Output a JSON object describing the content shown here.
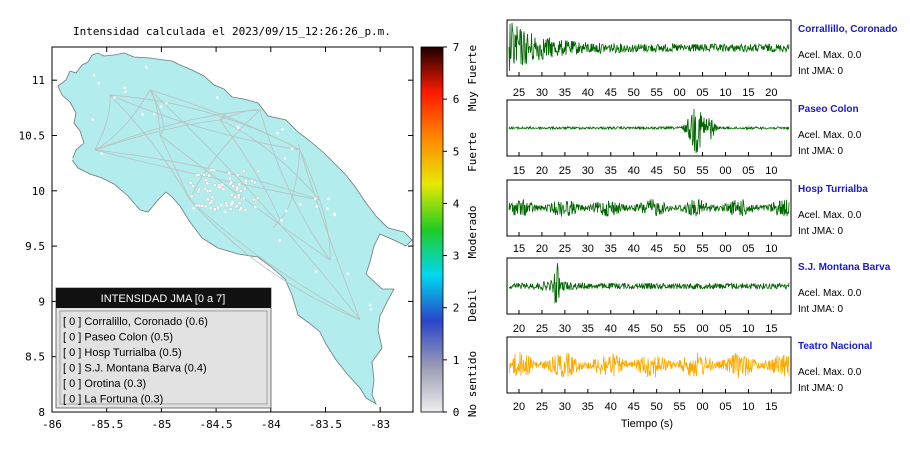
{
  "map": {
    "title": "Intensidad calculada el 2023/09/15_12:26:26_p.m.",
    "x_ticks": [
      -86,
      -85.5,
      -85,
      -84.5,
      -84,
      -83.5,
      -83
    ],
    "y_ticks": [
      8,
      8.5,
      9,
      9.5,
      10,
      10.5,
      11
    ],
    "xlim": [
      -86,
      -82.7
    ],
    "ylim": [
      8,
      11.3
    ],
    "colors": {
      "land": "#b3ecec",
      "coast": "#6a7b7b",
      "roads": "#b8c2c2",
      "towns": "#ffffff"
    }
  },
  "colorbar": {
    "ticks": [
      "0",
      "1",
      "2",
      "3",
      "4",
      "5",
      "6",
      "7"
    ],
    "labels": [
      "No sentido",
      "Debil",
      "Moderado",
      "Fuerte",
      "Muy Fuerte"
    ],
    "gradient": [
      "#eeeeee",
      "#9a9ab5",
      "#2a45c8",
      "#00d8f0",
      "#22cc22",
      "#e8e800",
      "#ff8800",
      "#ff1a00",
      "#1a0000"
    ]
  },
  "legend": {
    "title": "INTENSIDAD JMA [0 a 7]",
    "items": [
      "[ 0 ]  Corralillo, Coronado (0.6)",
      "[ 0 ]  Paseo Colon (0.5)",
      "[ 0 ]  Hosp Turrialba (0.5)",
      "[ 0 ]  S.J. Montana Barva (0.4)",
      "[ 0 ]  Orotina (0.3)",
      "[ 0 ]  La Fortuna (0.3)"
    ]
  },
  "chart_data": [
    {
      "type": "line",
      "title": "Intensidad calculada el 2023/09/15_12:26:26_p.m.",
      "xlim": [
        -86,
        -82.7
      ],
      "ylim": [
        8,
        11.3
      ]
    },
    {
      "type": "line",
      "name": "Corrallillo, Coronado",
      "x_ticks": [
        "25",
        "30",
        "35",
        "40",
        "45",
        "50",
        "55",
        "00",
        "05",
        "10",
        "15",
        "20"
      ],
      "color": "#006600",
      "amplitude_profile": "early-burst"
    },
    {
      "type": "line",
      "name": "Paseo Colon",
      "x_ticks": [
        "15",
        "20",
        "25",
        "30",
        "35",
        "40",
        "45",
        "50",
        "55",
        "00",
        "05",
        "10"
      ],
      "color": "#006600",
      "amplitude_profile": "mid-burst"
    },
    {
      "type": "line",
      "name": "Hosp Turrialba",
      "x_ticks": [
        "15",
        "20",
        "25",
        "30",
        "35",
        "40",
        "45",
        "50",
        "55",
        "00",
        "05",
        "10"
      ],
      "color": "#006600",
      "amplitude_profile": "noise"
    },
    {
      "type": "line",
      "name": "S.J. Montana Barva",
      "x_ticks": [
        "20",
        "25",
        "30",
        "35",
        "40",
        "45",
        "50",
        "55",
        "00",
        "05",
        "10",
        "15"
      ],
      "color": "#006600",
      "amplitude_profile": "spike"
    },
    {
      "type": "line",
      "name": "Teatro Nacional",
      "x_ticks": [
        "20",
        "25",
        "30",
        "35",
        "40",
        "45",
        "50",
        "55",
        "00",
        "05",
        "10",
        "15"
      ],
      "xlabel": "Tiempo (s)",
      "color": "#ffaa00",
      "amplitude_profile": "noise"
    }
  ],
  "stations": [
    {
      "name": "Corrallillo, Coronado",
      "acel": "Acel. Max. 0.0",
      "int": "Int JMA: 0"
    },
    {
      "name": "Paseo Colon",
      "acel": "Acel. Max. 0.0",
      "int": "Int JMA: 0"
    },
    {
      "name": "Hosp Turrialba",
      "acel": "Acel. Max. 0.0",
      "int": "Int JMA: 0"
    },
    {
      "name": "S.J. Montana Barva",
      "acel": "Acel. Max. 0.0",
      "int": "Int JMA: 0"
    },
    {
      "name": "Teatro Nacional",
      "acel": "Acel. Max. 0.0",
      "int": "Int JMA: 0"
    }
  ],
  "waveforms": {
    "xlabel": "Tiempo (s)",
    "station_name_color": "#1a1acc"
  }
}
